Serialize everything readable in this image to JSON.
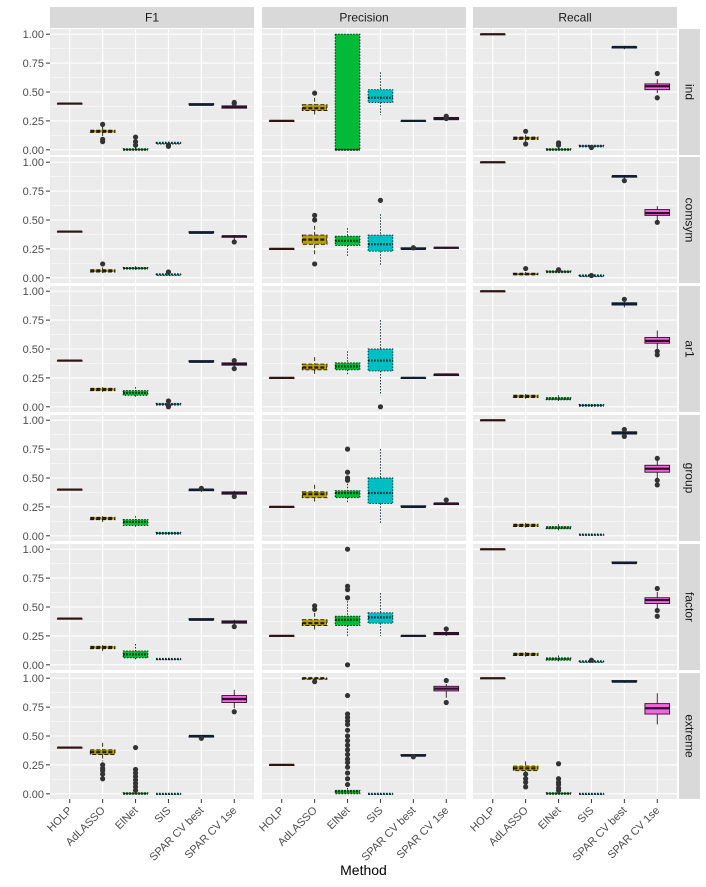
{
  "chart_data": {
    "type": "boxplot",
    "title": "",
    "xlabel": "Method",
    "ylabel": "",
    "ylim": [
      0,
      1
    ],
    "y_ticks": [
      "0.00",
      "0.25",
      "0.50",
      "0.75",
      "1.00"
    ],
    "y_tick_values": [
      0,
      0.25,
      0.5,
      0.75,
      1
    ],
    "metrics": [
      "F1",
      "Precision",
      "Recall"
    ],
    "scenarios": [
      "ind",
      "comsym",
      "ar1",
      "group",
      "factor",
      "extreme"
    ],
    "methods": [
      "HOLP",
      "AdLASSO",
      "ElNet",
      "SIS",
      "SPAR CV best",
      "SPAR CV 1se"
    ],
    "method_colors": [
      "#F8766D",
      "#B79F00",
      "#00BA38",
      "#00BFC4",
      "#619CFF",
      "#F564E3"
    ],
    "method_line_styles": [
      "solid",
      "dashed",
      "dotted",
      "dotted",
      "solid",
      "solid"
    ],
    "boxes": {
      "F1": {
        "ind": [
          [
            0.4,
            0.4,
            0.4,
            0.4,
            0.4
          ],
          [
            0.12,
            0.15,
            0.16,
            0.17,
            0.2
          ],
          [
            0.0,
            0.0,
            0.0,
            0.01,
            0.02
          ],
          [
            0.05,
            0.05,
            0.06,
            0.06,
            0.07
          ],
          [
            0.39,
            0.39,
            0.39,
            0.4,
            0.4
          ],
          [
            0.36,
            0.36,
            0.37,
            0.38,
            0.39
          ]
        ],
        "comsym": [
          [
            0.4,
            0.4,
            0.4,
            0.4,
            0.4
          ],
          [
            0.04,
            0.05,
            0.06,
            0.07,
            0.09
          ],
          [
            0.07,
            0.08,
            0.08,
            0.09,
            0.1
          ],
          [
            0.02,
            0.02,
            0.03,
            0.03,
            0.04
          ],
          [
            0.38,
            0.39,
            0.39,
            0.4,
            0.4
          ],
          [
            0.33,
            0.35,
            0.36,
            0.36,
            0.37
          ]
        ],
        "ar1": [
          [
            0.4,
            0.4,
            0.4,
            0.4,
            0.4
          ],
          [
            0.13,
            0.14,
            0.15,
            0.16,
            0.17
          ],
          [
            0.08,
            0.1,
            0.12,
            0.14,
            0.17
          ],
          [
            0.01,
            0.02,
            0.02,
            0.03,
            0.04
          ],
          [
            0.38,
            0.39,
            0.39,
            0.4,
            0.4
          ],
          [
            0.35,
            0.36,
            0.37,
            0.38,
            0.4
          ]
        ],
        "group": [
          [
            0.4,
            0.4,
            0.4,
            0.4,
            0.4
          ],
          [
            0.12,
            0.14,
            0.15,
            0.16,
            0.17
          ],
          [
            0.07,
            0.09,
            0.12,
            0.14,
            0.17
          ],
          [
            0.01,
            0.02,
            0.02,
            0.03,
            0.03
          ],
          [
            0.38,
            0.39,
            0.4,
            0.4,
            0.41
          ],
          [
            0.35,
            0.36,
            0.37,
            0.38,
            0.39
          ]
        ],
        "factor": [
          [
            0.4,
            0.4,
            0.4,
            0.4,
            0.4
          ],
          [
            0.12,
            0.14,
            0.15,
            0.16,
            0.17
          ],
          [
            0.04,
            0.06,
            0.09,
            0.12,
            0.18
          ],
          [
            0.04,
            0.05,
            0.05,
            0.05,
            0.06
          ],
          [
            0.39,
            0.39,
            0.39,
            0.4,
            0.4
          ],
          [
            0.35,
            0.36,
            0.37,
            0.38,
            0.39
          ]
        ],
        "extreme": [
          [
            0.4,
            0.4,
            0.4,
            0.4,
            0.4
          ],
          [
            0.28,
            0.34,
            0.36,
            0.38,
            0.44
          ],
          [
            0.0,
            0.0,
            0.0,
            0.01,
            0.02
          ],
          [
            0.0,
            0.0,
            0.0,
            0.0,
            0.0
          ],
          [
            0.49,
            0.49,
            0.5,
            0.5,
            0.5
          ],
          [
            0.74,
            0.79,
            0.82,
            0.85,
            0.9
          ]
        ]
      },
      "Precision": {
        "ind": [
          [
            0.25,
            0.25,
            0.25,
            0.25,
            0.25
          ],
          [
            0.3,
            0.34,
            0.36,
            0.39,
            0.45
          ],
          [
            0.0,
            0.0,
            0.0,
            1.0,
            1.0
          ],
          [
            0.3,
            0.41,
            0.45,
            0.52,
            0.67
          ],
          [
            0.25,
            0.25,
            0.25,
            0.25,
            0.25
          ],
          [
            0.25,
            0.26,
            0.27,
            0.28,
            0.29
          ]
        ],
        "comsym": [
          [
            0.25,
            0.25,
            0.25,
            0.25,
            0.25
          ],
          [
            0.2,
            0.29,
            0.33,
            0.37,
            0.45
          ],
          [
            0.18,
            0.28,
            0.32,
            0.36,
            0.43
          ],
          [
            0.1,
            0.23,
            0.29,
            0.37,
            0.55
          ],
          [
            0.24,
            0.25,
            0.25,
            0.26,
            0.27
          ],
          [
            0.25,
            0.26,
            0.26,
            0.26,
            0.27
          ]
        ],
        "ar1": [
          [
            0.25,
            0.25,
            0.25,
            0.25,
            0.25
          ],
          [
            0.28,
            0.32,
            0.34,
            0.37,
            0.43
          ],
          [
            0.27,
            0.32,
            0.35,
            0.38,
            0.48
          ],
          [
            0.1,
            0.31,
            0.4,
            0.5,
            0.75
          ],
          [
            0.24,
            0.25,
            0.25,
            0.25,
            0.26
          ],
          [
            0.27,
            0.27,
            0.28,
            0.28,
            0.29
          ]
        ],
        "group": [
          [
            0.25,
            0.25,
            0.25,
            0.25,
            0.25
          ],
          [
            0.28,
            0.33,
            0.36,
            0.38,
            0.44
          ],
          [
            0.28,
            0.33,
            0.37,
            0.39,
            0.45
          ],
          [
            0.1,
            0.28,
            0.37,
            0.5,
            0.75
          ],
          [
            0.24,
            0.25,
            0.25,
            0.26,
            0.26
          ],
          [
            0.27,
            0.27,
            0.28,
            0.28,
            0.29
          ]
        ],
        "factor": [
          [
            0.25,
            0.25,
            0.25,
            0.25,
            0.25
          ],
          [
            0.3,
            0.34,
            0.36,
            0.39,
            0.45
          ],
          [
            0.25,
            0.34,
            0.39,
            0.42,
            0.55
          ],
          [
            0.25,
            0.36,
            0.41,
            0.45,
            0.62
          ],
          [
            0.25,
            0.25,
            0.25,
            0.25,
            0.25
          ],
          [
            0.25,
            0.26,
            0.27,
            0.28,
            0.29
          ]
        ],
        "extreme": [
          [
            0.25,
            0.25,
            0.25,
            0.25,
            0.25
          ],
          [
            0.98,
            0.99,
            1.0,
            1.0,
            1.0
          ],
          [
            0.0,
            0.0,
            0.02,
            0.03,
            0.05
          ],
          [
            0.0,
            0.0,
            0.0,
            0.0,
            0.0
          ],
          [
            0.33,
            0.33,
            0.33,
            0.34,
            0.34
          ],
          [
            0.83,
            0.89,
            0.91,
            0.93,
            0.95
          ]
        ]
      },
      "Recall": {
        "ind": [
          [
            1.0,
            1.0,
            1.0,
            1.0,
            1.0
          ],
          [
            0.06,
            0.09,
            0.1,
            0.11,
            0.13
          ],
          [
            0.0,
            0.0,
            0.0,
            0.01,
            0.02
          ],
          [
            0.02,
            0.03,
            0.03,
            0.04,
            0.04
          ],
          [
            0.87,
            0.88,
            0.89,
            0.89,
            0.9
          ],
          [
            0.49,
            0.52,
            0.55,
            0.57,
            0.61
          ]
        ],
        "comsym": [
          [
            1.0,
            1.0,
            1.0,
            1.0,
            1.0
          ],
          [
            0.02,
            0.03,
            0.03,
            0.04,
            0.05
          ],
          [
            0.04,
            0.05,
            0.05,
            0.06,
            0.06
          ],
          [
            0.01,
            0.01,
            0.02,
            0.02,
            0.03
          ],
          [
            0.86,
            0.87,
            0.88,
            0.88,
            0.89
          ],
          [
            0.5,
            0.54,
            0.56,
            0.59,
            0.62
          ]
        ],
        "ar1": [
          [
            1.0,
            1.0,
            1.0,
            1.0,
            1.0
          ],
          [
            0.07,
            0.08,
            0.09,
            0.1,
            0.11
          ],
          [
            0.05,
            0.06,
            0.07,
            0.08,
            0.1
          ],
          [
            0.0,
            0.01,
            0.01,
            0.02,
            0.02
          ],
          [
            0.86,
            0.88,
            0.89,
            0.9,
            0.91
          ],
          [
            0.49,
            0.55,
            0.57,
            0.6,
            0.66
          ]
        ],
        "group": [
          [
            1.0,
            1.0,
            1.0,
            1.0,
            1.0
          ],
          [
            0.07,
            0.08,
            0.09,
            0.1,
            0.11
          ],
          [
            0.04,
            0.06,
            0.07,
            0.08,
            0.1
          ],
          [
            0.0,
            0.01,
            0.01,
            0.01,
            0.02
          ],
          [
            0.86,
            0.88,
            0.89,
            0.9,
            0.91
          ],
          [
            0.49,
            0.55,
            0.58,
            0.61,
            0.66
          ]
        ],
        "factor": [
          [
            1.0,
            1.0,
            1.0,
            1.0,
            1.0
          ],
          [
            0.07,
            0.08,
            0.09,
            0.1,
            0.11
          ],
          [
            0.03,
            0.04,
            0.05,
            0.06,
            0.08
          ],
          [
            0.02,
            0.02,
            0.03,
            0.03,
            0.04
          ],
          [
            0.87,
            0.88,
            0.88,
            0.89,
            0.89
          ],
          [
            0.47,
            0.53,
            0.56,
            0.58,
            0.63
          ]
        ],
        "extreme": [
          [
            1.0,
            1.0,
            1.0,
            1.0,
            1.0
          ],
          [
            0.15,
            0.2,
            0.22,
            0.24,
            0.28
          ],
          [
            0.0,
            0.0,
            0.0,
            0.01,
            0.02
          ],
          [
            0.0,
            0.0,
            0.0,
            0.0,
            0.0
          ],
          [
            0.96,
            0.97,
            0.97,
            0.98,
            0.98
          ],
          [
            0.6,
            0.69,
            0.74,
            0.78,
            0.87
          ]
        ]
      }
    },
    "outliers": {
      "F1": {
        "ind": [
          [],
          [
            0.07,
            0.09,
            0.22
          ],
          [
            0.04,
            0.07,
            0.11
          ],
          [
            0.03,
            0.04
          ],
          [],
          [
            0.4,
            0.41
          ]
        ],
        "comsym": [
          [],
          [
            0.12
          ],
          [],
          [
            0.05
          ],
          [],
          [
            0.31
          ]
        ],
        "ar1": [
          [],
          [],
          [],
          [
            0.0,
            0.01,
            0.05
          ],
          [],
          [
            0.33,
            0.4
          ]
        ],
        "group": [
          [],
          [],
          [],
          [],
          [
            0.41
          ],
          [
            0.34
          ]
        ],
        "factor": [
          [],
          [],
          [],
          [],
          [],
          [
            0.33
          ]
        ],
        "extreme": [
          [],
          [
            0.13,
            0.17,
            0.2,
            0.22,
            0.25
          ],
          [
            0.03,
            0.06,
            0.09,
            0.12,
            0.15,
            0.18,
            0.21,
            0.4
          ],
          [],
          [
            0.48
          ],
          [
            0.71
          ]
        ]
      },
      "Precision": {
        "ind": [
          [],
          [
            0.49
          ],
          [],
          [],
          [],
          [
            0.27,
            0.29
          ]
        ],
        "comsym": [
          [],
          [
            0.12,
            0.5,
            0.54
          ],
          [],
          [
            0.67
          ],
          [
            0.26
          ],
          []
        ],
        "ar1": [
          [],
          [],
          [],
          [
            0.0
          ],
          [],
          []
        ],
        "group": [
          [],
          [],
          [
            0.48,
            0.5,
            0.55,
            0.75
          ],
          [],
          [],
          [
            0.31
          ]
        ],
        "factor": [
          [],
          [
            0.48,
            0.51
          ],
          [
            0.0,
            0.58,
            0.65,
            0.68,
            1.0
          ],
          [],
          [],
          [
            0.31
          ]
        ],
        "extreme": [
          [],
          [
            0.97
          ],
          [
            0.08,
            0.13,
            0.18,
            0.23,
            0.27,
            0.3,
            0.34,
            0.38,
            0.42,
            0.46,
            0.5,
            0.55,
            0.6,
            0.63,
            0.66,
            0.69,
            0.85
          ],
          [],
          [
            0.32
          ],
          [
            0.79,
            0.98
          ]
        ]
      },
      "Recall": {
        "ind": [
          [],
          [
            0.05,
            0.16
          ],
          [
            0.04,
            0.06
          ],
          [
            0.02
          ],
          [],
          [
            0.45,
            0.66
          ]
        ],
        "comsym": [
          [],
          [
            0.08
          ],
          [
            0.07
          ],
          [
            0.02
          ],
          [
            0.84
          ],
          [
            0.48
          ]
        ],
        "ar1": [
          [],
          [],
          [],
          [],
          [
            0.93
          ],
          [
            0.45,
            0.48
          ]
        ],
        "group": [
          [],
          [],
          [],
          [],
          [
            0.92,
            0.86
          ],
          [
            0.44,
            0.48,
            0.67
          ]
        ],
        "factor": [
          [],
          [],
          [],
          [
            0.04
          ],
          [],
          [
            0.42,
            0.47,
            0.66
          ]
        ],
        "extreme": [
          [],
          [
            0.06,
            0.1,
            0.13,
            0.17
          ],
          [
            0.03,
            0.05,
            0.08,
            0.1,
            0.13,
            0.26
          ],
          [],
          [],
          []
        ]
      }
    },
    "legend": "none",
    "grid": true
  }
}
